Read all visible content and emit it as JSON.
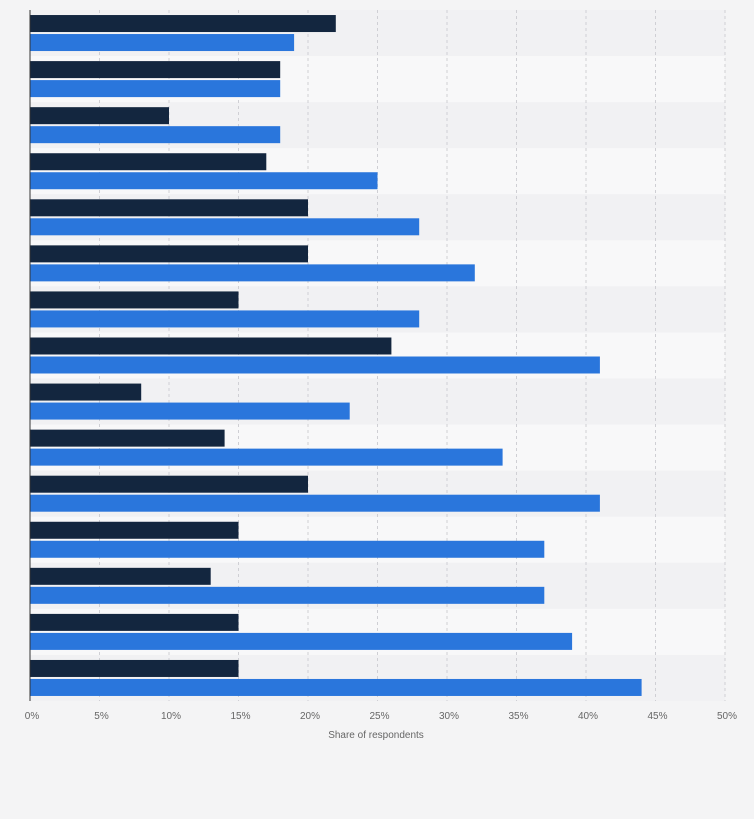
{
  "chart_data": {
    "type": "bar",
    "orientation": "horizontal",
    "title": "",
    "xlabel": "Share of respondents",
    "ylabel": "",
    "xlim": [
      0,
      50
    ],
    "x_ticks": [
      "0%",
      "5%",
      "10%",
      "15%",
      "20%",
      "25%",
      "30%",
      "35%",
      "40%",
      "45%",
      "50%"
    ],
    "grid": true,
    "legend": "none",
    "category_labels_visible": false,
    "series": [
      {
        "values": [
          22,
          18,
          10,
          17,
          20,
          20,
          15,
          26,
          8,
          14,
          20,
          15,
          13,
          15,
          15
        ]
      },
      {
        "values": [
          19,
          18,
          18,
          25,
          28,
          32,
          28,
          41,
          23,
          34,
          41,
          37,
          37,
          39,
          44
        ]
      }
    ],
    "colors": {
      "series": [
        "#13263f",
        "#2a76dc"
      ],
      "background": "#f4f4f5",
      "band_dark": "#f1f1f3",
      "band_light": "#f8f8f9",
      "grid": "#cfcfd4",
      "axis": "#333333",
      "text": "#666666"
    }
  }
}
